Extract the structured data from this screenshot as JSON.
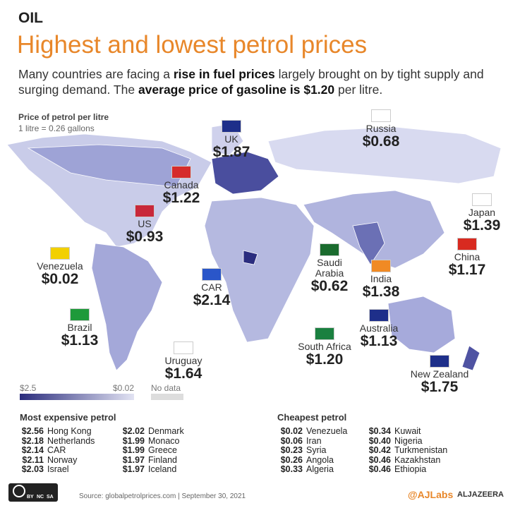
{
  "header": {
    "label": "OIL",
    "title": "Highest and lowest petrol prices",
    "subtitle": [
      {
        "text": "Many countries are facing a "
      },
      {
        "text": "rise in fuel prices",
        "bold": true
      },
      {
        "text": " largely brought on by tight supply and surging demand. The "
      },
      {
        "text": "average price of gasoline is $1.20",
        "bold": true
      },
      {
        "text": " per litre."
      }
    ]
  },
  "legend": {
    "title": "Price of petrol per litre",
    "note": "1 litre = 0.26 gallons",
    "scale_max": "$2.5",
    "scale_min": "$0.02",
    "no_data": "No data"
  },
  "callouts": [
    {
      "country": "UK",
      "price": "$1.87"
    },
    {
      "country": "Russia",
      "price": "$0.68"
    },
    {
      "country": "Canada",
      "price": "$1.22"
    },
    {
      "country": "US",
      "price": "$0.93"
    },
    {
      "country": "Venezuela",
      "price": "$0.02"
    },
    {
      "country": "Brazil",
      "price": "$1.13"
    },
    {
      "country": "CAR",
      "price": "$2.14"
    },
    {
      "country": "Saudi Arabia",
      "price": "$0.62"
    },
    {
      "country": "India",
      "price": "$1.38"
    },
    {
      "country": "Japan",
      "price": "$1.39"
    },
    {
      "country": "China",
      "price": "$1.17"
    },
    {
      "country": "Australia",
      "price": "$1.13"
    },
    {
      "country": "South Africa",
      "price": "$1.20"
    },
    {
      "country": "Uruguay",
      "price": "$1.64"
    },
    {
      "country": "New Zealand",
      "price": "$1.75"
    }
  ],
  "most_expensive": {
    "title": "Most expensive petrol",
    "items": [
      {
        "price": "$2.56",
        "country": "Hong Kong"
      },
      {
        "price": "$2.18",
        "country": "Netherlands"
      },
      {
        "price": "$2.14",
        "country": "CAR"
      },
      {
        "price": "$2.11",
        "country": "Norway"
      },
      {
        "price": "$2.03",
        "country": "Israel"
      },
      {
        "price": "$2.02",
        "country": "Denmark"
      },
      {
        "price": "$1.99",
        "country": "Monaco"
      },
      {
        "price": "$1.99",
        "country": "Greece"
      },
      {
        "price": "$1.97",
        "country": "Finland"
      },
      {
        "price": "$1.97",
        "country": "Iceland"
      }
    ]
  },
  "cheapest": {
    "title": "Cheapest petrol",
    "items": [
      {
        "price": "$0.02",
        "country": "Venezuela"
      },
      {
        "price": "$0.06",
        "country": "Iran"
      },
      {
        "price": "$0.23",
        "country": "Syria"
      },
      {
        "price": "$0.26",
        "country": "Angola"
      },
      {
        "price": "$0.33",
        "country": "Algeria"
      },
      {
        "price": "$0.34",
        "country": "Kuwait"
      },
      {
        "price": "$0.40",
        "country": "Nigeria"
      },
      {
        "price": "$0.42",
        "country": "Turkmenistan"
      },
      {
        "price": "$0.46",
        "country": "Kazakhstan"
      },
      {
        "price": "$0.46",
        "country": "Ethiopia"
      }
    ]
  },
  "footer": {
    "license": [
      "BY",
      "NC",
      "SA"
    ],
    "source": "Source: globalpetrolprices.com | September 30, 2021",
    "handle": "@AJLabs",
    "brand": "ALJAZEERA"
  }
}
